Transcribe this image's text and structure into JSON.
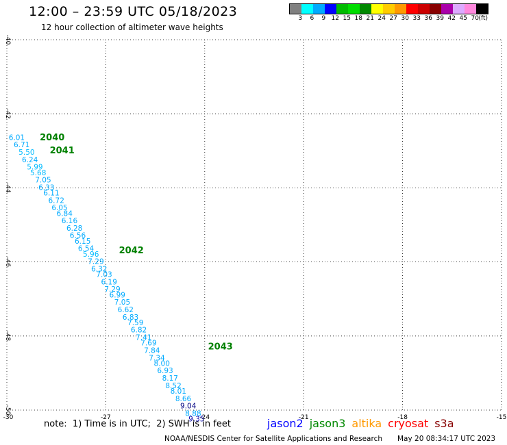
{
  "header": {
    "title": "12:00 – 23:59 UTC 05/18/2023",
    "subtitle": "12 hour collection of altimeter wave heights"
  },
  "scale": {
    "colors": [
      "#808080",
      "#00ffff",
      "#00aaff",
      "#0000ff",
      "#00bb00",
      "#00dd00",
      "#008800",
      "#ffff00",
      "#ffcc00",
      "#ff9900",
      "#ff0000",
      "#cc0000",
      "#880000",
      "#aa00aa",
      "#ddaaff",
      "#ff88dd",
      "#000000"
    ],
    "labels": [
      "3",
      "6",
      "9",
      "12",
      "15",
      "18",
      "21",
      "24",
      "27",
      "30",
      "33",
      "36",
      "39",
      "42",
      "45",
      "70",
      "(ft)"
    ]
  },
  "chart_data": {
    "type": "scatter",
    "title": "12:00 – 23:59 UTC 05/18/2023",
    "subtitle": "12 hour collection of altimeter wave heights",
    "xlim": [
      -30,
      -15
    ],
    "ylim": [
      -50,
      -40
    ],
    "x_ticks": [
      "-30",
      "-27",
      "-24",
      "-21",
      "-18",
      "-15"
    ],
    "y_ticks": [
      "-40",
      "-42",
      "-44",
      "-46",
      "-48",
      "-50"
    ],
    "grid": true,
    "track_labels": [
      {
        "text": "2040",
        "lon": -29.0,
        "lat": -42.65,
        "color": "#008000"
      },
      {
        "text": "2041",
        "lon": -28.7,
        "lat": -43.0,
        "color": "#008000"
      },
      {
        "text": "2042",
        "lon": -26.6,
        "lat": -45.7,
        "color": "#008000"
      },
      {
        "text": "2043",
        "lon": -23.9,
        "lat": -48.3,
        "color": "#008000"
      }
    ],
    "points": [
      {
        "label": "6.01",
        "lon": -29.7,
        "lat": -42.65,
        "color": "#00aaff"
      },
      {
        "label": "6.71",
        "lon": -29.55,
        "lat": -42.85,
        "color": "#00aaff"
      },
      {
        "label": "5.50",
        "lon": -29.4,
        "lat": -43.05,
        "color": "#00bbff"
      },
      {
        "label": "6.24",
        "lon": -29.3,
        "lat": -43.25,
        "color": "#00aaff"
      },
      {
        "label": "5.99",
        "lon": -29.15,
        "lat": -43.45,
        "color": "#00bbff"
      },
      {
        "label": "5.68",
        "lon": -29.05,
        "lat": -43.6,
        "color": "#00bbff"
      },
      {
        "label": "7.05",
        "lon": -28.9,
        "lat": -43.8,
        "color": "#00aaff"
      },
      {
        "label": "6.33",
        "lon": -28.8,
        "lat": -44.0,
        "color": "#00aaff"
      },
      {
        "label": "6.11",
        "lon": -28.65,
        "lat": -44.15,
        "color": "#00aaff"
      },
      {
        "label": "6.72",
        "lon": -28.5,
        "lat": -44.35,
        "color": "#00aaff"
      },
      {
        "label": "6.05",
        "lon": -28.4,
        "lat": -44.55,
        "color": "#00aaff"
      },
      {
        "label": "6.84",
        "lon": -28.25,
        "lat": -44.7,
        "color": "#00aaff"
      },
      {
        "label": "6.16",
        "lon": -28.1,
        "lat": -44.9,
        "color": "#00aaff"
      },
      {
        "label": "6.28",
        "lon": -27.95,
        "lat": -45.1,
        "color": "#00aaff"
      },
      {
        "label": "6.56",
        "lon": -27.85,
        "lat": -45.3,
        "color": "#00aaff"
      },
      {
        "label": "6.15",
        "lon": -27.7,
        "lat": -45.45,
        "color": "#00aaff"
      },
      {
        "label": "6.54",
        "lon": -27.6,
        "lat": -45.65,
        "color": "#00aaff"
      },
      {
        "label": "5.96",
        "lon": -27.45,
        "lat": -45.8,
        "color": "#00bbff"
      },
      {
        "label": "7.29",
        "lon": -27.3,
        "lat": -46.0,
        "color": "#00aaff"
      },
      {
        "label": "6.32",
        "lon": -27.2,
        "lat": -46.2,
        "color": "#00aaff"
      },
      {
        "label": "7.03",
        "lon": -27.05,
        "lat": -46.35,
        "color": "#00aaff"
      },
      {
        "label": "6.19",
        "lon": -26.9,
        "lat": -46.55,
        "color": "#00aaff"
      },
      {
        "label": "7.29",
        "lon": -26.8,
        "lat": -46.75,
        "color": "#00aaff"
      },
      {
        "label": "6.99",
        "lon": -26.65,
        "lat": -46.9,
        "color": "#00aaff"
      },
      {
        "label": "7.05",
        "lon": -26.5,
        "lat": -47.1,
        "color": "#00aaff"
      },
      {
        "label": "6.62",
        "lon": -26.4,
        "lat": -47.3,
        "color": "#00aaff"
      },
      {
        "label": "6.83",
        "lon": -26.25,
        "lat": -47.5,
        "color": "#00aaff"
      },
      {
        "label": "7.59",
        "lon": -26.1,
        "lat": -47.65,
        "color": "#00aaff"
      },
      {
        "label": "6.82",
        "lon": -26.0,
        "lat": -47.85,
        "color": "#00aaff"
      },
      {
        "label": "7.41",
        "lon": -25.85,
        "lat": -48.05,
        "color": "#00aaff"
      },
      {
        "label": "7.69",
        "lon": -25.7,
        "lat": -48.2,
        "color": "#00aaff"
      },
      {
        "label": "7.84",
        "lon": -25.6,
        "lat": -48.4,
        "color": "#00aaff"
      },
      {
        "label": "7.34",
        "lon": -25.45,
        "lat": -48.6,
        "color": "#00aaff"
      },
      {
        "label": "8.00",
        "lon": -25.3,
        "lat": -48.75,
        "color": "#00aaff"
      },
      {
        "label": "6.93",
        "lon": -25.2,
        "lat": -48.95,
        "color": "#00aaff"
      },
      {
        "label": "8.17",
        "lon": -25.05,
        "lat": -49.15,
        "color": "#00aaff"
      },
      {
        "label": "8.52",
        "lon": -24.95,
        "lat": -49.35,
        "color": "#00aaff"
      },
      {
        "label": "8.01",
        "lon": -24.8,
        "lat": -49.5,
        "color": "#00aaff"
      },
      {
        "label": "8.66",
        "lon": -24.65,
        "lat": -49.7,
        "color": "#00aaff"
      },
      {
        "label": "9.04",
        "lon": -24.5,
        "lat": -49.9,
        "color": "#000080"
      },
      {
        "label": "8.88",
        "lon": -24.35,
        "lat": -50.1,
        "color": "#00aaff"
      },
      {
        "label": "9.35",
        "lon": -24.25,
        "lat": -50.25,
        "color": "#0000aa"
      }
    ]
  },
  "footer": {
    "note": "note:  1) Time is in UTC;  2) SWH is in feet",
    "missions": [
      {
        "name": "jason2",
        "color": "#0000ff"
      },
      {
        "name": "jason3",
        "color": "#008800"
      },
      {
        "name": "altika",
        "color": "#ff9900"
      },
      {
        "name": "cryosat",
        "color": "#ff0000"
      },
      {
        "name": "s3a",
        "color": "#880000"
      }
    ],
    "credit": "NOAA/NESDIS Center for Satellite Applications and Research",
    "timestamp": "May 20 08:34:17 UTC 2023"
  }
}
